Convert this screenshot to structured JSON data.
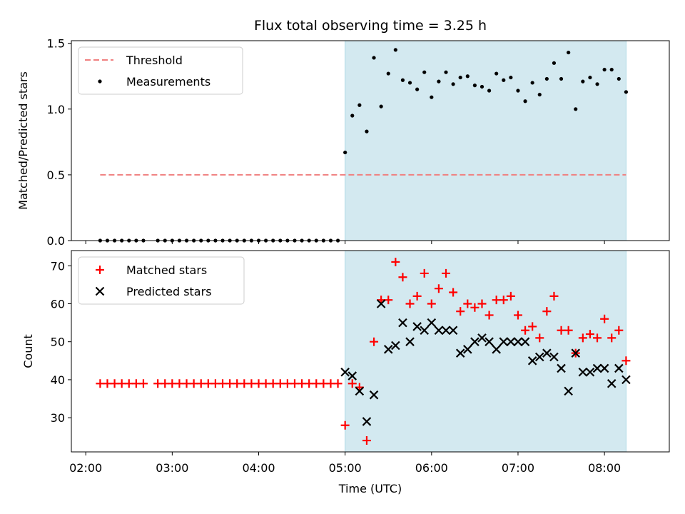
{
  "chart_data": {
    "type": "scatter",
    "title": "Flux total observing time = 3.25 h",
    "xlabel": "Time (UTC)",
    "xlim": [
      "01:50",
      "08:45"
    ],
    "x_ticks": [
      "02:00",
      "03:00",
      "04:00",
      "05:00",
      "06:00",
      "07:00",
      "08:00"
    ],
    "highlight_span": {
      "from": "05:00",
      "to": "08:15",
      "color": "#d3e9f0"
    },
    "panels": [
      {
        "ylabel": "Matched/Predicted stars",
        "ylim": [
          0,
          1.52
        ],
        "y_ticks": [
          "0.0",
          "0.5",
          "1.0",
          "1.5"
        ],
        "legend": {
          "position": "top-left",
          "entries": [
            "Threshold",
            "Measurements"
          ]
        },
        "series": [
          {
            "name": "Threshold",
            "style": "dashed-line",
            "color": "#f08080",
            "x": [
              "02:10",
              "08:15"
            ],
            "y": [
              0.5,
              0.5
            ]
          },
          {
            "name": "Measurements",
            "style": "dot",
            "color": "#000000",
            "x": [
              "02:10",
              "02:15",
              "02:20",
              "02:25",
              "02:30",
              "02:35",
              "02:40",
              "02:50",
              "02:55",
              "03:00",
              "03:05",
              "03:10",
              "03:15",
              "03:20",
              "03:25",
              "03:30",
              "03:35",
              "03:40",
              "03:45",
              "03:50",
              "03:55",
              "04:00",
              "04:05",
              "04:10",
              "04:15",
              "04:20",
              "04:25",
              "04:30",
              "04:35",
              "04:40",
              "04:45",
              "04:50",
              "04:55",
              "05:00",
              "05:05",
              "05:10",
              "05:15",
              "05:20",
              "05:25",
              "05:30",
              "05:35",
              "05:40",
              "05:45",
              "05:50",
              "05:55",
              "06:00",
              "06:05",
              "06:10",
              "06:15",
              "06:20",
              "06:25",
              "06:30",
              "06:35",
              "06:40",
              "06:45",
              "06:50",
              "06:55",
              "07:00",
              "07:05",
              "07:10",
              "07:15",
              "07:20",
              "07:25",
              "07:30",
              "07:35",
              "07:40",
              "07:45",
              "07:50",
              "07:55",
              "08:00",
              "08:05",
              "08:10",
              "08:15"
            ],
            "y": [
              0,
              0,
              0,
              0,
              0,
              0,
              0,
              0,
              0,
              0,
              0,
              0,
              0,
              0,
              0,
              0,
              0,
              0,
              0,
              0,
              0,
              0,
              0,
              0,
              0,
              0,
              0,
              0,
              0,
              0,
              0,
              0,
              0,
              0.67,
              0.95,
              1.03,
              0.83,
              1.39,
              1.02,
              1.27,
              1.45,
              1.22,
              1.2,
              1.15,
              1.28,
              1.09,
              1.21,
              1.28,
              1.19,
              1.24,
              1.25,
              1.18,
              1.17,
              1.14,
              1.27,
              1.22,
              1.24,
              1.14,
              1.06,
              1.2,
              1.11,
              1.23,
              1.35,
              1.23,
              1.43,
              1.0,
              1.21,
              1.24,
              1.19,
              1.3,
              1.3,
              1.23,
              1.13
            ]
          }
        ]
      },
      {
        "ylabel": "Count",
        "ylim": [
          21,
          74
        ],
        "y_ticks": [
          "30",
          "40",
          "50",
          "60",
          "70"
        ],
        "legend": {
          "position": "top-left",
          "entries": [
            "Matched stars",
            "Predicted stars"
          ]
        },
        "series": [
          {
            "name": "Matched stars",
            "style": "plus",
            "color": "#ff0000",
            "x": [
              "02:10",
              "02:15",
              "02:20",
              "02:25",
              "02:30",
              "02:35",
              "02:40",
              "02:50",
              "02:55",
              "03:00",
              "03:05",
              "03:10",
              "03:15",
              "03:20",
              "03:25",
              "03:30",
              "03:35",
              "03:40",
              "03:45",
              "03:50",
              "03:55",
              "04:00",
              "04:05",
              "04:10",
              "04:15",
              "04:20",
              "04:25",
              "04:30",
              "04:35",
              "04:40",
              "04:45",
              "04:50",
              "04:55",
              "05:00",
              "05:05",
              "05:10",
              "05:15",
              "05:20",
              "05:25",
              "05:30",
              "05:35",
              "05:40",
              "05:45",
              "05:50",
              "05:55",
              "06:00",
              "06:05",
              "06:10",
              "06:15",
              "06:20",
              "06:25",
              "06:30",
              "06:35",
              "06:40",
              "06:45",
              "06:50",
              "06:55",
              "07:00",
              "07:05",
              "07:10",
              "07:15",
              "07:20",
              "07:25",
              "07:30",
              "07:35",
              "07:40",
              "07:45",
              "07:50",
              "07:55",
              "08:00",
              "08:05",
              "08:10",
              "08:15"
            ],
            "y": [
              39,
              39,
              39,
              39,
              39,
              39,
              39,
              39,
              39,
              39,
              39,
              39,
              39,
              39,
              39,
              39,
              39,
              39,
              39,
              39,
              39,
              39,
              39,
              39,
              39,
              39,
              39,
              39,
              39,
              39,
              39,
              39,
              39,
              28,
              39,
              38,
              24,
              50,
              61,
              61,
              71,
              67,
              60,
              62,
              68,
              60,
              64,
              68,
              63,
              58,
              60,
              59,
              60,
              57,
              61,
              61,
              62,
              57,
              53,
              54,
              51,
              58,
              62,
              53,
              53,
              47,
              51,
              52,
              51,
              56,
              51,
              53,
              45
            ]
          },
          {
            "name": "Predicted stars",
            "style": "x",
            "color": "#000000",
            "x": [
              "05:00",
              "05:05",
              "05:10",
              "05:15",
              "05:20",
              "05:25",
              "05:30",
              "05:35",
              "05:40",
              "05:45",
              "05:50",
              "05:55",
              "06:00",
              "06:05",
              "06:10",
              "06:15",
              "06:20",
              "06:25",
              "06:30",
              "06:35",
              "06:40",
              "06:45",
              "06:50",
              "06:55",
              "07:00",
              "07:05",
              "07:10",
              "07:15",
              "07:20",
              "07:25",
              "07:30",
              "07:35",
              "07:40",
              "07:45",
              "07:50",
              "07:55",
              "08:00",
              "08:05",
              "08:10",
              "08:15"
            ],
            "y": [
              42,
              41,
              37,
              29,
              36,
              60,
              48,
              49,
              55,
              50,
              54,
              53,
              55,
              53,
              53,
              53,
              47,
              48,
              50,
              51,
              50,
              48,
              50,
              50,
              50,
              50,
              45,
              46,
              47,
              46,
              43,
              37,
              47,
              42,
              42,
              43,
              43,
              39,
              43,
              40
            ]
          }
        ]
      }
    ]
  }
}
